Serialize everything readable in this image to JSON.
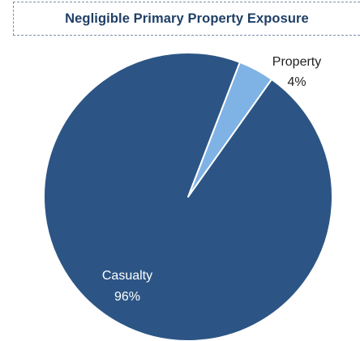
{
  "chart_data": {
    "type": "pie",
    "title": "Negligible Primary Property Exposure",
    "slices": [
      {
        "label": "Property",
        "value": 4,
        "display": "4%",
        "color": "#7fb2e5"
      },
      {
        "label": "Casualty",
        "value": 96,
        "display": "96%",
        "color": "#2c5585"
      }
    ],
    "legend": "none"
  }
}
